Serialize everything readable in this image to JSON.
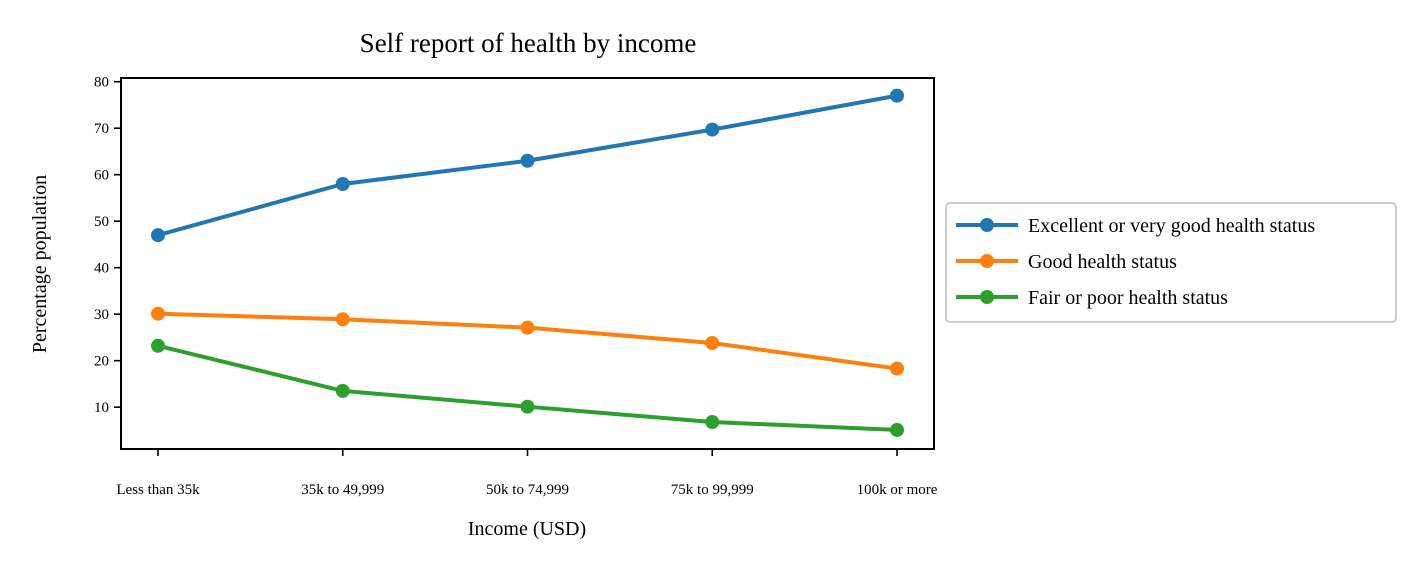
{
  "chart_data": {
    "type": "line",
    "title": "Self report of health by income",
    "xlabel": "Income (USD)",
    "ylabel": "Percentage population",
    "categories": [
      "Less than 35k",
      "35k to 49,999",
      "50k to 74,999",
      "75k to 99,999",
      "100k or more"
    ],
    "ylim": [
      1,
      80.8
    ],
    "yticks": [
      10,
      20,
      30,
      40,
      50,
      60,
      70,
      80
    ],
    "grid": false,
    "legend_position": "outside right",
    "series": [
      {
        "name": "Excellent or very good health status",
        "color": "#1f77b4",
        "values": [
          47,
          58,
          63,
          69.7,
          77
        ]
      },
      {
        "name": "Good health status",
        "color": "#ff7f0e",
        "values": [
          30.1,
          28.9,
          27.1,
          23.8,
          18.3
        ]
      },
      {
        "name": "Fair or poor health status",
        "color": "#2ca02c",
        "values": [
          23.2,
          13.5,
          10.1,
          6.8,
          5.1
        ]
      }
    ]
  }
}
